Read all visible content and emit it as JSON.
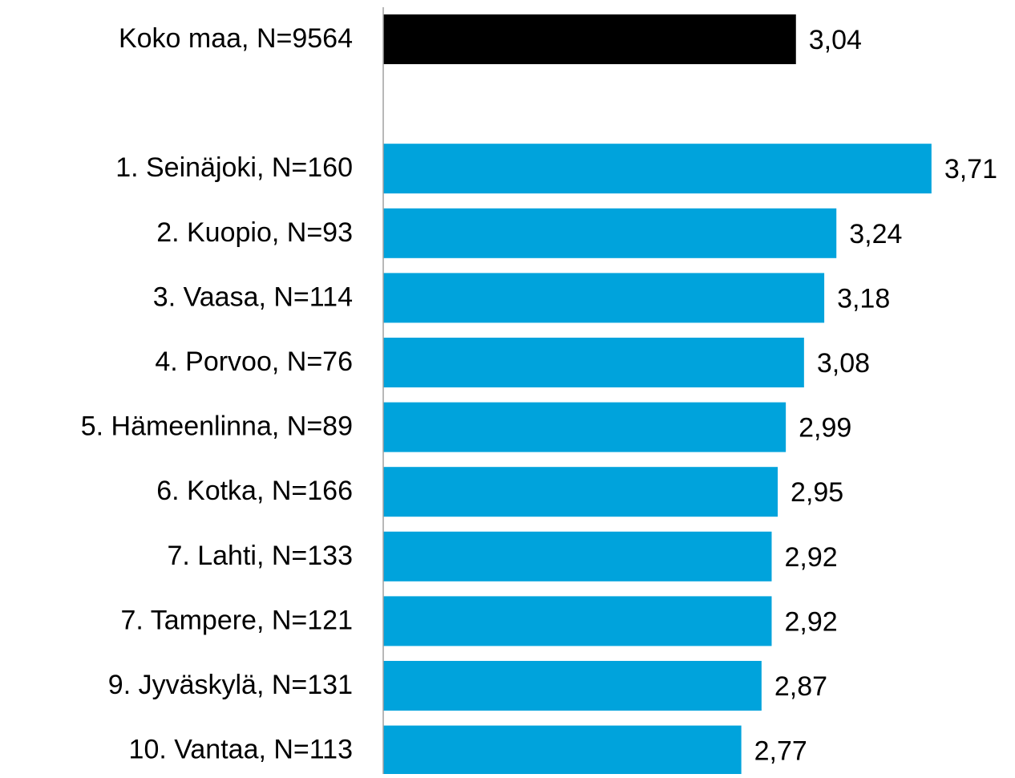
{
  "chart_data": {
    "type": "bar",
    "orientation": "horizontal",
    "categories": [
      "Koko maa, N=9564",
      null,
      "1. Seinäjoki, N=160",
      "2. Kuopio, N=93",
      "3. Vaasa, N=114",
      "4. Porvoo, N=76",
      "5. Hämeenlinna, N=89",
      "6. Kotka, N=166",
      "7. Lahti, N=133",
      "7. Tampere, N=121",
      "9. Jyväskylä, N=131",
      "10. Vantaa, N=113"
    ],
    "values": [
      3.04,
      null,
      3.71,
      3.24,
      3.18,
      3.08,
      2.99,
      2.95,
      2.92,
      2.92,
      2.87,
      2.77
    ],
    "value_labels": [
      "3,04",
      null,
      "3,71",
      "3,24",
      "3,18",
      "3,08",
      "2,99",
      "2,95",
      "2,92",
      "2,92",
      "2,87",
      "2,77"
    ],
    "colors": [
      "#000000",
      null,
      "#00a3dc",
      "#00a3dc",
      "#00a3dc",
      "#00a3dc",
      "#00a3dc",
      "#00a3dc",
      "#00a3dc",
      "#00a3dc",
      "#00a3dc",
      "#00a3dc"
    ],
    "xlim": [
      1,
      4
    ]
  }
}
